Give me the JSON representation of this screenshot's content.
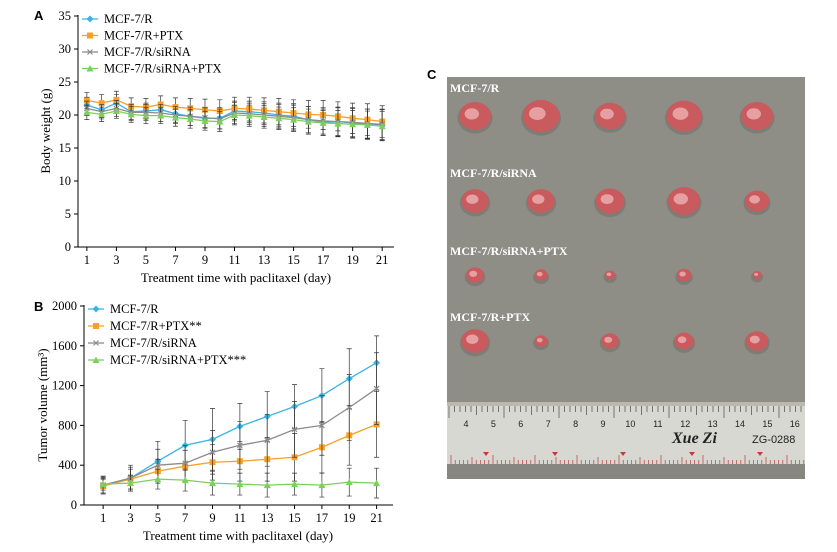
{
  "panels": {
    "a_label": "A",
    "b_label": "B",
    "c_label": "C"
  },
  "chart_data": [
    {
      "id": "A",
      "type": "line",
      "xlabel": "Treatment time with paclitaxel (day)",
      "ylabel": "Body weight (g)",
      "x": [
        1,
        2,
        3,
        4,
        5,
        6,
        7,
        8,
        9,
        10,
        11,
        12,
        13,
        14,
        15,
        16,
        17,
        18,
        19,
        20,
        21
      ],
      "xticks": [
        1,
        3,
        5,
        7,
        9,
        11,
        13,
        15,
        17,
        19,
        21
      ],
      "yticks": [
        0,
        5,
        10,
        15,
        20,
        25,
        30,
        35
      ],
      "xlim": [
        0.4,
        21.8
      ],
      "ylim": [
        0,
        35
      ],
      "legend_position": "top-left",
      "series": [
        {
          "name": "MCF-7/R",
          "color": "#3bb3e5",
          "marker": "diamond",
          "values": [
            21.5,
            20.8,
            21.8,
            20.5,
            20.6,
            20.8,
            20.2,
            19.8,
            19.5,
            19.5,
            20.6,
            20.5,
            20.3,
            20.0,
            19.8,
            19.3,
            18.9,
            19.0,
            18.8,
            18.6,
            18.5
          ],
          "errors": [
            1.2,
            1.2,
            1.3,
            1.2,
            1.2,
            1.2,
            1.3,
            1.4,
            1.5,
            1.6,
            1.5,
            1.6,
            1.7,
            1.8,
            1.9,
            2.0,
            2.0,
            2.2,
            2.2,
            2.3,
            2.3
          ]
        },
        {
          "name": "MCF-7/R+PTX",
          "color": "#f7a028",
          "marker": "square",
          "values": [
            22.2,
            21.8,
            22.3,
            21.3,
            21.2,
            21.6,
            21.2,
            21.0,
            20.8,
            20.6,
            21.0,
            20.9,
            20.7,
            20.5,
            20.3,
            20.1,
            20.0,
            19.8,
            19.5,
            19.3,
            19.0
          ],
          "errors": [
            1.2,
            1.3,
            1.3,
            1.3,
            1.3,
            1.3,
            1.4,
            1.5,
            1.6,
            1.7,
            1.7,
            1.8,
            1.9,
            2.0,
            2.0,
            2.1,
            2.2,
            2.2,
            2.3,
            2.4,
            2.4
          ]
        },
        {
          "name": "MCF-7/R/siRNA",
          "color": "#8c8c8c",
          "marker": "x",
          "values": [
            21.0,
            20.5,
            21.0,
            20.4,
            20.4,
            20.3,
            20.0,
            19.8,
            19.6,
            19.4,
            20.3,
            20.2,
            20.0,
            19.8,
            19.6,
            19.3,
            19.1,
            19.0,
            18.9,
            18.7,
            18.6
          ],
          "errors": [
            1.1,
            1.1,
            1.2,
            1.2,
            1.2,
            1.3,
            1.3,
            1.4,
            1.5,
            1.5,
            1.6,
            1.6,
            1.7,
            1.8,
            1.9,
            2.0,
            2.0,
            2.1,
            2.2,
            2.2,
            2.3
          ]
        },
        {
          "name": "MCF-7/R/siRNA+PTX",
          "color": "#7dcf5c",
          "marker": "triangle",
          "values": [
            20.4,
            20.1,
            20.6,
            20.1,
            19.9,
            19.9,
            19.6,
            19.4,
            19.1,
            19.0,
            20.0,
            19.9,
            19.7,
            19.5,
            19.3,
            19.0,
            18.8,
            18.7,
            18.6,
            18.5,
            18.3
          ],
          "errors": [
            1.1,
            1.1,
            1.1,
            1.2,
            1.2,
            1.2,
            1.3,
            1.4,
            1.4,
            1.5,
            1.5,
            1.6,
            1.7,
            1.7,
            1.8,
            1.9,
            1.9,
            2.0,
            2.1,
            2.1,
            2.2
          ]
        }
      ]
    },
    {
      "id": "B",
      "type": "line",
      "xlabel": "Treatment time with paclitaxel (day)",
      "ylabel": "Tumor volume (mm³)",
      "x": [
        1,
        3,
        5,
        7,
        9,
        11,
        13,
        15,
        17,
        19,
        21
      ],
      "xticks": [
        1,
        3,
        5,
        7,
        9,
        11,
        13,
        15,
        17,
        19,
        21
      ],
      "yticks": [
        0,
        400,
        800,
        1200,
        1600,
        2000
      ],
      "xlim": [
        -0.4,
        22.2
      ],
      "ylim": [
        0,
        2000
      ],
      "legend_position": "top-left",
      "series": [
        {
          "name": "MCF-7/R",
          "color": "#3bb3e5",
          "marker": "diamond",
          "values": [
            200,
            270,
            440,
            600,
            660,
            790,
            890,
            990,
            1100,
            1270,
            1430
          ],
          "errors": [
            90,
            130,
            200,
            250,
            310,
            230,
            250,
            220,
            270,
            300,
            270
          ]
        },
        {
          "name": "MCF-7/R+PTX**",
          "color": "#f7a028",
          "marker": "square",
          "values": [
            190,
            260,
            340,
            390,
            430,
            440,
            460,
            480,
            580,
            700,
            810
          ],
          "errors": [
            70,
            100,
            120,
            160,
            180,
            200,
            220,
            240,
            260,
            300,
            330
          ]
        },
        {
          "name": "MCF-7/R/siRNA",
          "color": "#8c8c8c",
          "marker": "x",
          "values": [
            200,
            270,
            400,
            420,
            530,
            600,
            650,
            760,
            800,
            980,
            1170
          ],
          "errors": [
            80,
            110,
            160,
            180,
            220,
            240,
            260,
            280,
            300,
            330,
            360
          ]
        },
        {
          "name": "MCF-7/R/siRNA+PTX***",
          "color": "#7dcf5c",
          "marker": "triangle",
          "values": [
            210,
            220,
            260,
            250,
            220,
            210,
            200,
            210,
            200,
            230,
            220
          ],
          "errors": [
            60,
            80,
            100,
            110,
            120,
            110,
            120,
            110,
            120,
            140,
            150
          ]
        }
      ]
    }
  ],
  "photo": {
    "rows": [
      {
        "label": "MCF-7/R",
        "tumor_sizes": [
          1.0,
          1.15,
          0.95,
          1.1,
          1.0
        ]
      },
      {
        "label": "MCF-7/R/siRNA",
        "tumor_sizes": [
          0.85,
          0.85,
          0.9,
          1.0,
          0.75
        ]
      },
      {
        "label": "MCF-7/R/siRNA+PTX",
        "tumor_sizes": [
          0.55,
          0.4,
          0.32,
          0.45,
          0.28
        ]
      },
      {
        "label": "MCF-7/R+PTX",
        "tumor_sizes": [
          0.85,
          0.4,
          0.55,
          0.6,
          0.7
        ]
      }
    ],
    "ruler_numbers": [
      "4",
      "5",
      "6",
      "7",
      "8",
      "9",
      "10",
      "11",
      "12",
      "13",
      "14",
      "15",
      "16"
    ],
    "brand": "Xue Zi",
    "code": "ZG-0288",
    "colors": {
      "background": "#8e8e86",
      "tumor": "#c95a5e",
      "tumor_highlight": "#f0b8b8",
      "ruler": "#d8d8d2"
    }
  }
}
